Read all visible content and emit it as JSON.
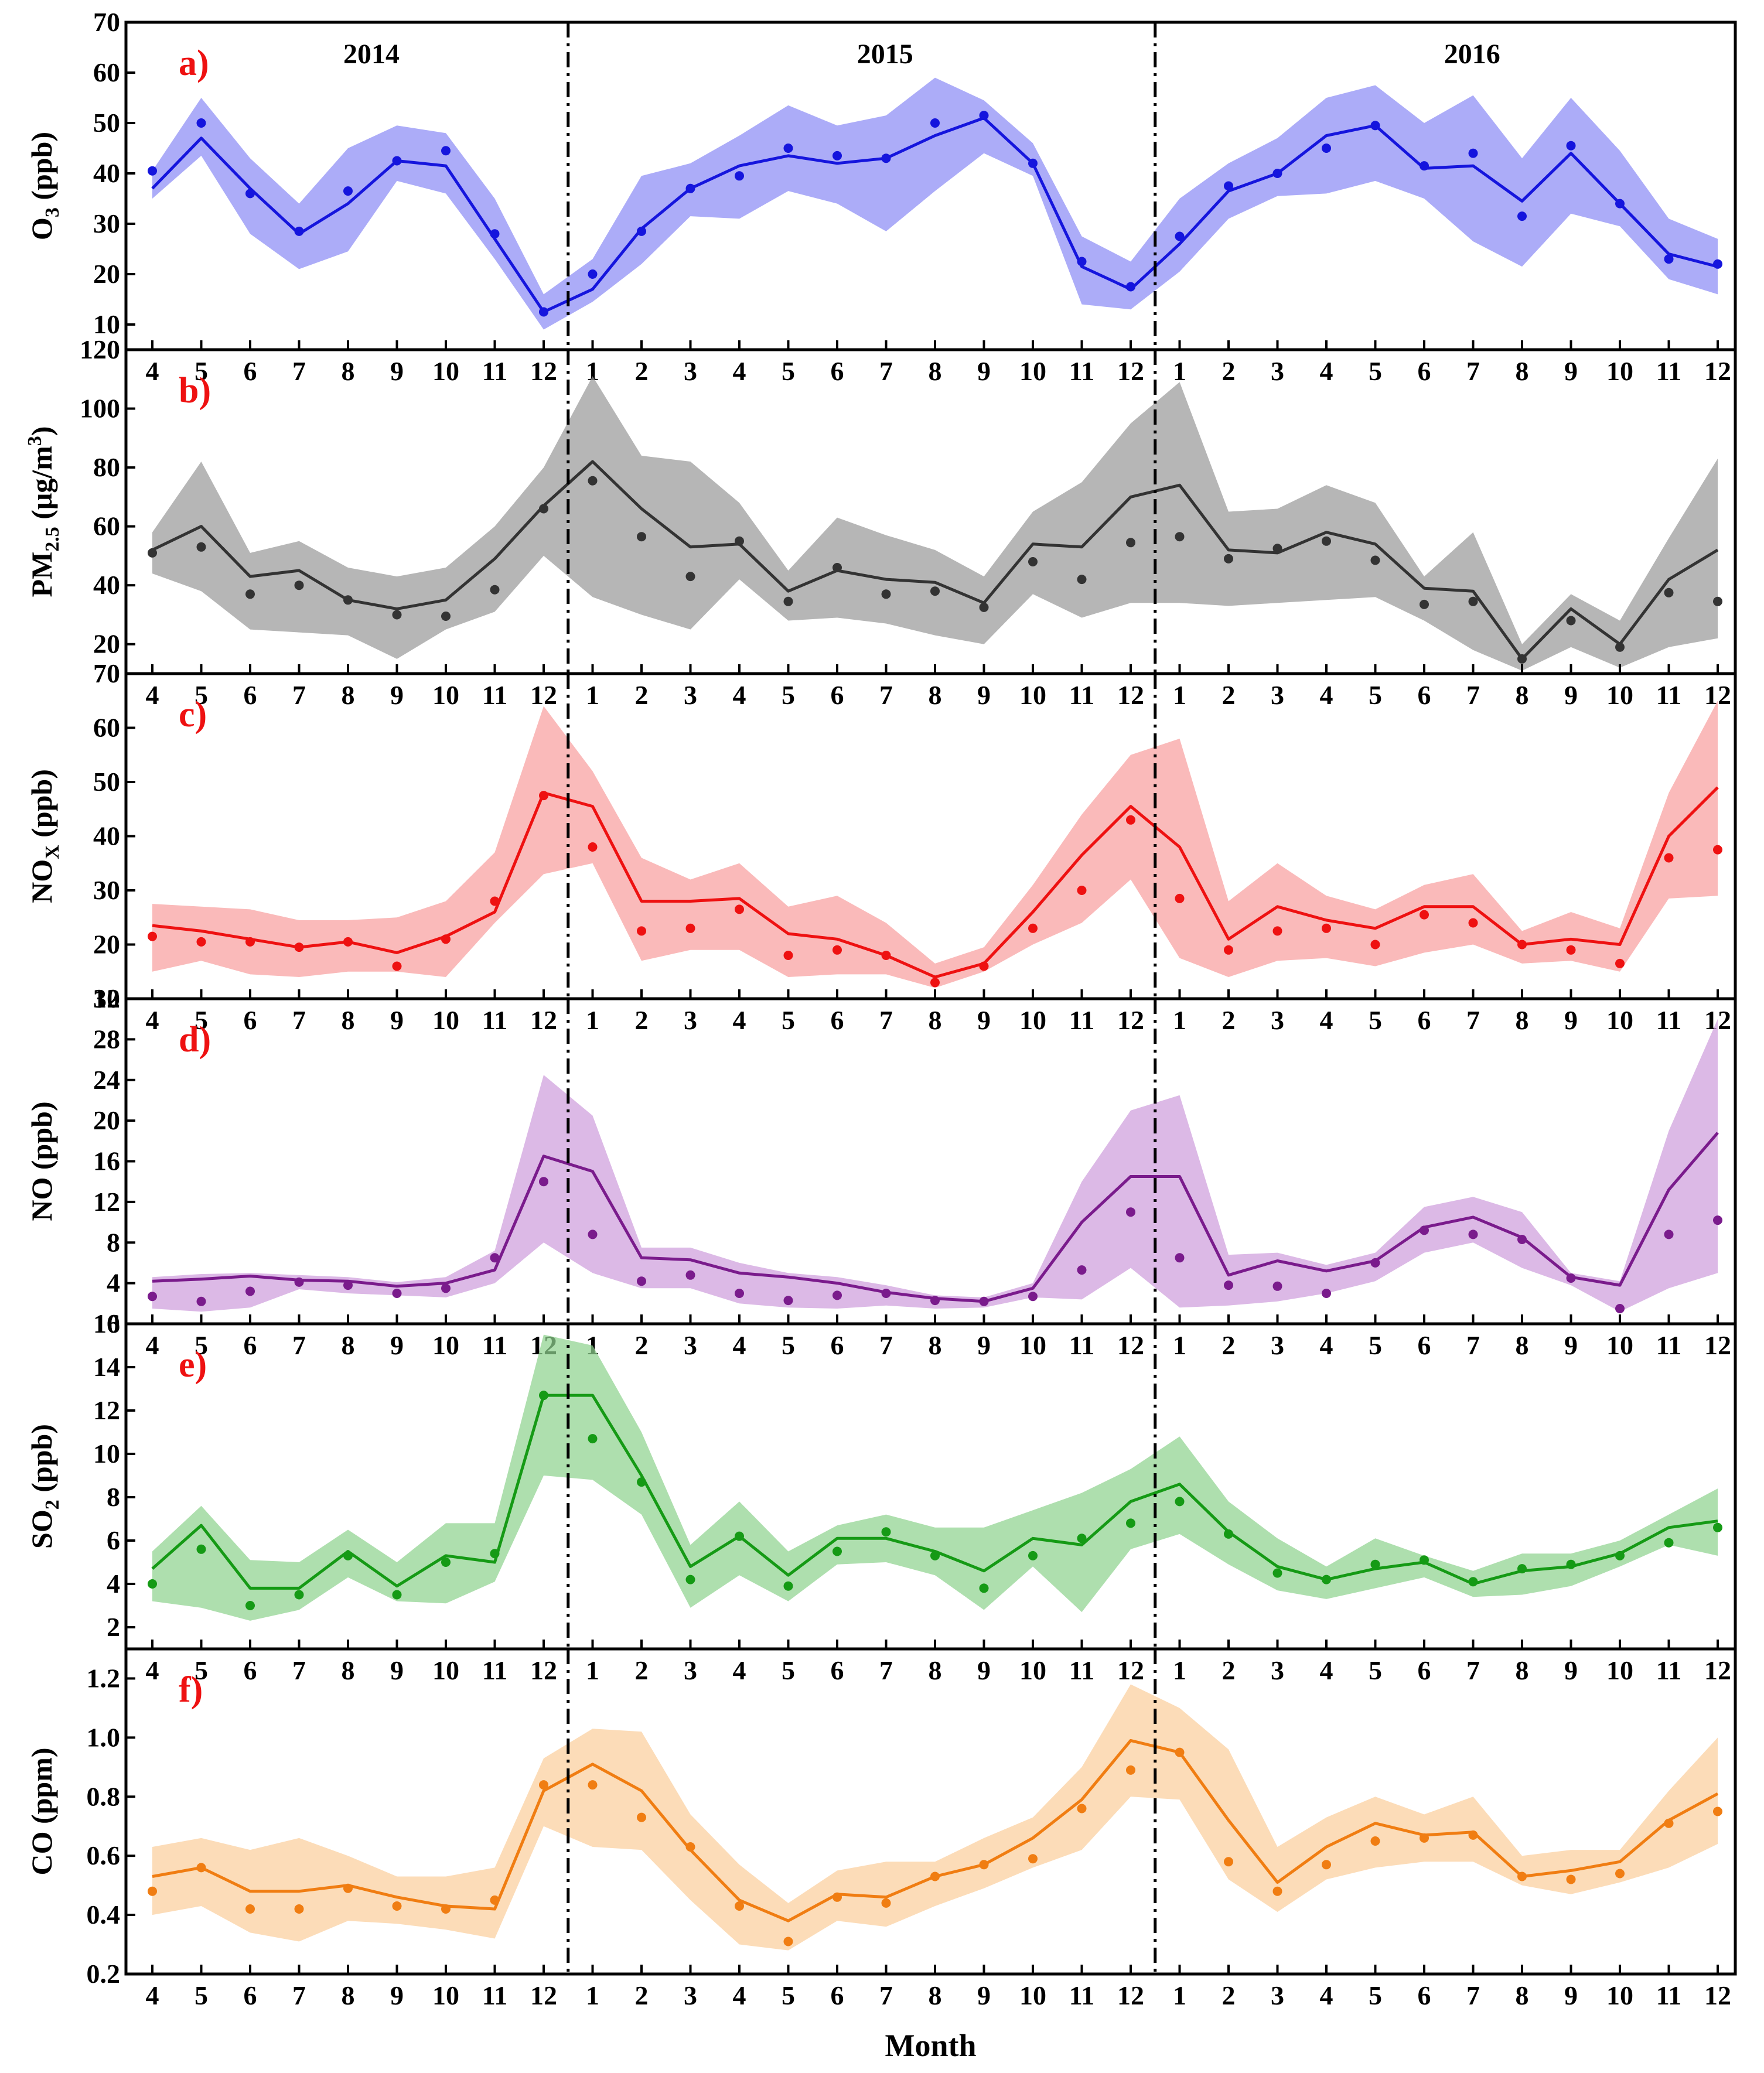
{
  "chart_data": {
    "type": "line",
    "xlabel": "Month",
    "year_labels": [
      "2014",
      "2015",
      "2016"
    ],
    "x_tick_labels": [
      "4",
      "5",
      "6",
      "7",
      "8",
      "9",
      "10",
      "11",
      "12",
      "1",
      "2",
      "3",
      "4",
      "5",
      "6",
      "7",
      "8",
      "9",
      "10",
      "11",
      "12",
      "1",
      "2",
      "3",
      "4",
      "5",
      "6",
      "7",
      "8",
      "9",
      "10",
      "11",
      "12"
    ],
    "period_dividers_after_index": [
      8,
      20
    ],
    "panels": [
      {
        "letter": "a)",
        "ylabel": {
          "main": "O",
          "sub": "3",
          "rest": " (ppb)"
        },
        "color": "#1515dd",
        "band_color": "#8c8cf5",
        "ylim": [
          5,
          70
        ],
        "yticks": [
          10,
          20,
          30,
          40,
          50,
          60,
          70
        ],
        "line": [
          37,
          47,
          37,
          28,
          34,
          42.5,
          41.5,
          27,
          12.5,
          17,
          29,
          37,
          41.5,
          43.5,
          42,
          43,
          47.5,
          51,
          42,
          21.5,
          17,
          26,
          36.5,
          40,
          47.5,
          49.5,
          41,
          41.5,
          34.5,
          44,
          34,
          24,
          21.5
        ],
        "points": [
          40.5,
          50,
          36,
          28.5,
          36.5,
          42.5,
          44.5,
          28,
          12.5,
          20,
          28.5,
          37,
          39.5,
          45,
          43.5,
          43,
          50,
          51.5,
          42,
          22.5,
          17.5,
          27.5,
          37.5,
          40,
          45,
          49.5,
          41.5,
          44,
          31.5,
          45.5,
          34,
          23,
          22
        ],
        "upper": [
          40.5,
          55,
          43,
          34,
          45,
          49.5,
          48,
          35,
          16,
          23,
          39.5,
          42,
          47.5,
          53.5,
          49.5,
          51.5,
          59,
          54.5,
          46,
          27.5,
          22.5,
          35,
          42,
          47,
          55,
          57.5,
          50,
          55.5,
          43,
          55,
          44.5,
          31,
          27
        ],
        "lower": [
          35,
          43.5,
          28,
          21,
          24.5,
          38.5,
          36,
          23,
          9,
          14.5,
          22,
          31.5,
          31,
          36.5,
          34,
          28.5,
          36.5,
          44,
          39.5,
          14,
          13,
          20.5,
          31,
          35.5,
          36,
          38.5,
          35,
          26.5,
          21.5,
          32,
          29.5,
          19,
          16
        ]
      },
      {
        "letter": "b)",
        "ylabel": {
          "main": "PM",
          "sub": "2.5",
          "rest": " (μg/m",
          "sup": "3",
          "close": ")"
        },
        "color": "#333333",
        "band_color": "#9a9a9a",
        "ylim": [
          10,
          120
        ],
        "yticks": [
          20,
          40,
          60,
          80,
          100,
          120
        ],
        "line": [
          52,
          60,
          43,
          45,
          35,
          32,
          35,
          49,
          67,
          82,
          66,
          53,
          54,
          38,
          45,
          42,
          41,
          34,
          54,
          53,
          70,
          74,
          52,
          51,
          58,
          54,
          39,
          38,
          15,
          32,
          20,
          42,
          52
        ],
        "points": [
          51,
          53,
          37,
          40,
          35,
          30,
          29.5,
          38.5,
          66,
          75.5,
          56.5,
          43,
          55,
          34.5,
          46,
          37,
          38,
          32.5,
          48,
          42,
          54.5,
          56.5,
          49,
          52.5,
          55,
          48.5,
          33.5,
          34.5,
          15,
          28,
          19,
          37.5,
          34.5
        ],
        "upper": [
          58,
          82,
          51,
          55,
          46,
          43,
          46,
          60,
          80,
          111,
          84,
          82,
          68,
          45,
          63,
          57,
          52,
          43,
          65,
          75,
          95,
          109,
          65,
          66,
          74,
          68,
          43,
          58,
          20,
          37,
          28,
          56,
          83
        ],
        "lower": [
          44,
          38,
          25,
          24,
          23,
          15,
          25,
          31,
          50,
          36,
          30,
          25,
          42,
          28,
          29,
          27,
          23,
          20,
          37,
          29,
          34,
          34,
          33,
          34,
          35,
          36,
          28,
          18,
          11,
          19,
          12,
          19,
          22
        ]
      },
      {
        "letter": "c)",
        "ylabel": {
          "main": "NO",
          "sub": "X",
          "rest": " (ppb)"
        },
        "color": "#ee1111",
        "band_color": "#f8a0a0",
        "ylim": [
          10,
          70
        ],
        "yticks": [
          10,
          20,
          30,
          40,
          50,
          60,
          70
        ],
        "line": [
          23.5,
          22.5,
          21,
          19.5,
          20.5,
          18.5,
          21.5,
          26,
          48,
          45.5,
          28,
          28,
          28.5,
          22,
          21,
          18,
          14,
          16.5,
          26,
          36.5,
          45.5,
          38,
          21,
          27,
          24.5,
          23,
          27,
          27,
          20,
          21,
          20,
          40,
          49
        ],
        "points": [
          21.5,
          20.5,
          20.5,
          19.5,
          20.5,
          16,
          21,
          28,
          47.5,
          38,
          22.5,
          23,
          26.5,
          18,
          19,
          18,
          13,
          16,
          23,
          30,
          43,
          28.5,
          19,
          22.5,
          23,
          20,
          25.5,
          24,
          20,
          19,
          16.5,
          36,
          37.5
        ],
        "upper": [
          27.5,
          27,
          26.5,
          24.5,
          24.5,
          25,
          28,
          37,
          64,
          52,
          36,
          32,
          35,
          27,
          29,
          24,
          16.5,
          19.5,
          31,
          44,
          55,
          58,
          28,
          35,
          29,
          26.5,
          31,
          33,
          22.5,
          26,
          23,
          48,
          65
        ],
        "lower": [
          15,
          17,
          14.5,
          14,
          15,
          15,
          14,
          24,
          33,
          35,
          17,
          19,
          19,
          14,
          14.5,
          14.5,
          12,
          15,
          20,
          24,
          32,
          17.5,
          14,
          17,
          17.5,
          16,
          18.5,
          20,
          16.5,
          17,
          15,
          28.5,
          29
        ]
      },
      {
        "letter": "d)",
        "ylabel": {
          "main": "NO",
          "rest": " (ppb)"
        },
        "color": "#7a1b8c",
        "band_color": "#cf9edc",
        "ylim": [
          0,
          32
        ],
        "yticks": [
          0,
          4,
          8,
          12,
          16,
          20,
          24,
          28,
          32
        ],
        "line": [
          4.2,
          4.4,
          4.7,
          4.3,
          4.2,
          3.7,
          4.0,
          5.3,
          16.5,
          15,
          6.5,
          6.3,
          5,
          4.6,
          4,
          3.1,
          2.5,
          2.2,
          3.5,
          10,
          14.5,
          14.5,
          4.8,
          6.2,
          5.2,
          6.2,
          9.5,
          10.5,
          8.5,
          4.6,
          3.8,
          13.2,
          18.8
        ],
        "points": [
          2.7,
          2.2,
          3.2,
          4.1,
          3.8,
          3.0,
          3.5,
          6.5,
          14,
          8.8,
          4.2,
          4.8,
          3.0,
          2.3,
          2.8,
          3.0,
          2.3,
          2.2,
          2.7,
          5.3,
          11,
          6.5,
          3.8,
          3.7,
          3.0,
          6.0,
          9.2,
          8.8,
          8.3,
          4.5,
          1.5,
          8.8,
          10.2
        ],
        "upper": [
          4.6,
          4.9,
          5.0,
          4.8,
          4.6,
          4.1,
          4.6,
          7.2,
          24.5,
          20.5,
          7.5,
          7.5,
          6,
          5,
          4.6,
          3.8,
          2.8,
          2.6,
          4,
          14,
          21,
          22.5,
          6.8,
          7,
          5.8,
          7,
          11.5,
          12.5,
          11,
          5,
          4.2,
          19,
          30
        ],
        "lower": [
          1.5,
          1.2,
          1.6,
          3.4,
          3.0,
          2.8,
          2.6,
          4.0,
          8,
          5,
          3.5,
          3.5,
          2,
          1.6,
          1.5,
          1.8,
          1.5,
          1.6,
          2.6,
          2.4,
          5.5,
          1.6,
          1.8,
          2.2,
          3,
          4.2,
          7,
          8,
          5.5,
          3.8,
          1.2,
          3.5,
          5
        ],
        "y_band_note": ""
      },
      {
        "letter": "e)",
        "ylabel": {
          "main": "SO",
          "sub": "2",
          "rest": " (ppb)"
        },
        "color": "#159a15",
        "band_color": "#8fd28f",
        "ylim": [
          1,
          16
        ],
        "yticks": [
          2,
          4,
          6,
          8,
          10,
          12,
          14,
          16
        ],
        "line": [
          4.7,
          6.7,
          3.8,
          3.8,
          5.5,
          3.9,
          5.3,
          5.0,
          12.7,
          12.7,
          9.0,
          4.8,
          6.2,
          4.4,
          6.1,
          6.1,
          5.5,
          4.6,
          6.1,
          5.8,
          7.8,
          8.6,
          6.4,
          4.8,
          4.2,
          4.7,
          5.0,
          4.0,
          4.6,
          4.8,
          5.4,
          6.6,
          6.9
        ],
        "points": [
          4.0,
          5.6,
          3.0,
          3.5,
          5.3,
          3.5,
          5.0,
          5.4,
          12.7,
          10.7,
          8.7,
          4.2,
          6.2,
          3.9,
          5.5,
          6.4,
          5.3,
          3.8,
          5.3,
          6.1,
          6.8,
          7.8,
          6.3,
          4.5,
          4.2,
          4.9,
          5.1,
          4.1,
          4.7,
          4.9,
          5.3,
          5.9,
          6.6
        ],
        "upper": [
          5.5,
          7.6,
          5.1,
          5.0,
          6.5,
          5.0,
          6.8,
          6.8,
          15.5,
          15.0,
          11.0,
          5.8,
          7.8,
          5.5,
          6.7,
          7.2,
          6.6,
          6.6,
          7.4,
          8.2,
          9.3,
          10.8,
          7.8,
          6.1,
          4.8,
          6.1,
          5.3,
          4.6,
          5.4,
          5.4,
          6.0,
          7.2,
          8.4
        ],
        "lower": [
          3.2,
          2.9,
          2.3,
          2.8,
          4.3,
          3.2,
          3.1,
          4.1,
          9.0,
          8.8,
          7.2,
          2.9,
          4.4,
          3.2,
          4.9,
          5.0,
          4.4,
          2.8,
          4.8,
          2.7,
          5.6,
          6.3,
          4.9,
          3.7,
          3.3,
          3.8,
          4.3,
          3.4,
          3.5,
          3.9,
          4.8,
          5.8,
          5.3
        ]
      },
      {
        "letter": "f)",
        "ylabel": {
          "main": "CO",
          "rest": " (ppm)"
        },
        "color": "#f07d12",
        "band_color": "#fbcf9c",
        "ylim": [
          0.2,
          1.3
        ],
        "yticks": [
          0.2,
          0.4,
          0.6,
          0.8,
          1.0,
          1.2
        ],
        "tick_format": "fixed1",
        "line": [
          0.53,
          0.56,
          0.48,
          0.48,
          0.5,
          0.46,
          0.43,
          0.42,
          0.82,
          0.91,
          0.82,
          0.62,
          0.45,
          0.38,
          0.47,
          0.46,
          0.53,
          0.57,
          0.66,
          0.79,
          0.99,
          0.95,
          0.72,
          0.51,
          0.63,
          0.71,
          0.67,
          0.68,
          0.53,
          0.55,
          0.58,
          0.72,
          0.81
        ],
        "points": [
          0.48,
          0.56,
          0.42,
          0.42,
          0.49,
          0.43,
          0.42,
          0.45,
          0.84,
          0.84,
          0.73,
          0.63,
          0.43,
          0.31,
          0.46,
          0.44,
          0.53,
          0.57,
          0.59,
          0.76,
          0.89,
          0.95,
          0.58,
          0.48,
          0.57,
          0.65,
          0.66,
          0.67,
          0.53,
          0.52,
          0.54,
          0.71,
          0.75
        ],
        "upper": [
          0.63,
          0.66,
          0.62,
          0.66,
          0.6,
          0.53,
          0.53,
          0.56,
          0.93,
          1.03,
          1.02,
          0.74,
          0.57,
          0.44,
          0.55,
          0.58,
          0.58,
          0.66,
          0.73,
          0.9,
          1.18,
          1.1,
          0.96,
          0.63,
          0.73,
          0.8,
          0.74,
          0.8,
          0.6,
          0.62,
          0.62,
          0.82,
          1.0
        ],
        "lower": [
          0.4,
          0.43,
          0.34,
          0.31,
          0.38,
          0.37,
          0.35,
          0.32,
          0.7,
          0.63,
          0.62,
          0.45,
          0.3,
          0.28,
          0.38,
          0.36,
          0.43,
          0.49,
          0.56,
          0.62,
          0.8,
          0.79,
          0.52,
          0.41,
          0.52,
          0.56,
          0.58,
          0.58,
          0.5,
          0.47,
          0.51,
          0.56,
          0.64
        ]
      }
    ]
  }
}
